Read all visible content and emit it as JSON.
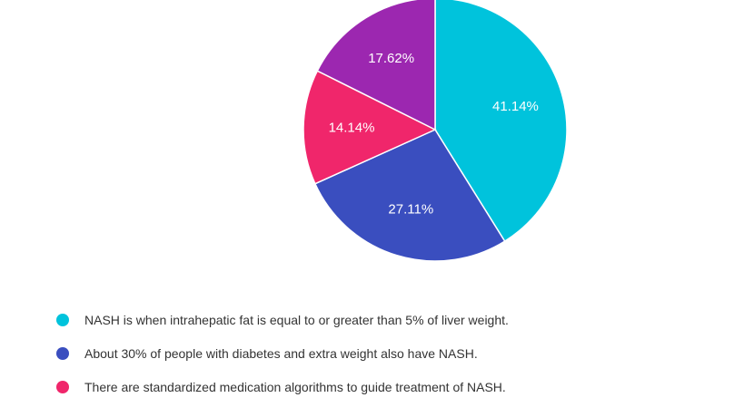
{
  "chart_data": {
    "type": "pie",
    "slices": [
      {
        "label": "NASH is when intrahepatic fat is equal to or greater than 5% of liver weight.",
        "value": 41.14,
        "display": "41.14%",
        "color": "#00c3dc"
      },
      {
        "label": "About 30% of people with diabetes and extra weight also have NASH.",
        "value": 27.11,
        "display": "27.11%",
        "color": "#3a4ebf"
      },
      {
        "label": "There are standardized medication algorithms to guide treatment of NASH.",
        "value": 14.14,
        "display": "14.14%",
        "color": "#f0266b"
      },
      {
        "label": "",
        "value": 17.62,
        "display": "17.62%",
        "color": "#9c27b0"
      }
    ],
    "legend": [
      {
        "label": "NASH is when intrahepatic fat is equal to or greater than 5% of liver weight.",
        "color": "#00c3dc"
      },
      {
        "label": "About 30% of people with diabetes and extra weight also have NASH.",
        "color": "#3a4ebf"
      },
      {
        "label": "There are standardized medication algorithms to guide treatment of NASH.",
        "color": "#f0266b"
      }
    ],
    "legend_position": "bottom-left",
    "start_angle": "top",
    "direction": "clockwise"
  }
}
